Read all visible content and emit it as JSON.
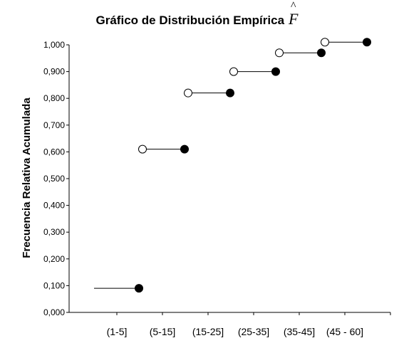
{
  "chart_data": {
    "type": "step",
    "title": "Gráfico de Distribución Empírica",
    "title_symbol": "F",
    "title_symbol_accent": "^",
    "ylabel": "Frecuencia Relativa Acumulada",
    "xlabel": "",
    "ylim": [
      0,
      1
    ],
    "y_ticks": [
      "0,000",
      "0,100",
      "0,200",
      "0,300",
      "0,400",
      "0,500",
      "0,600",
      "0,700",
      "0,800",
      "0,900",
      "1,000"
    ],
    "y_tick_values": [
      0,
      0.1,
      0.2,
      0.3,
      0.4,
      0.5,
      0.6,
      0.7,
      0.8,
      0.9,
      1.0
    ],
    "categories": [
      "(1-5]",
      "(5-15]",
      "(15-25]",
      "(25-35]",
      "(35-45]",
      "(45 - 60]"
    ],
    "segments": [
      {
        "y": 0.09,
        "from": 0,
        "to": 1,
        "open_start": false,
        "closed_end": true
      },
      {
        "y": 0.61,
        "from": 1,
        "to": 2,
        "open_start": true,
        "closed_end": true
      },
      {
        "y": 0.82,
        "from": 2,
        "to": 3,
        "open_start": true,
        "closed_end": true
      },
      {
        "y": 0.9,
        "from": 3,
        "to": 4,
        "open_start": true,
        "closed_end": true
      },
      {
        "y": 0.97,
        "from": 4,
        "to": 5,
        "open_start": true,
        "closed_end": true
      },
      {
        "y": 1.01,
        "from": 5,
        "to": 6,
        "open_start": true,
        "closed_end": true
      }
    ],
    "grid": false,
    "legend": "none"
  }
}
